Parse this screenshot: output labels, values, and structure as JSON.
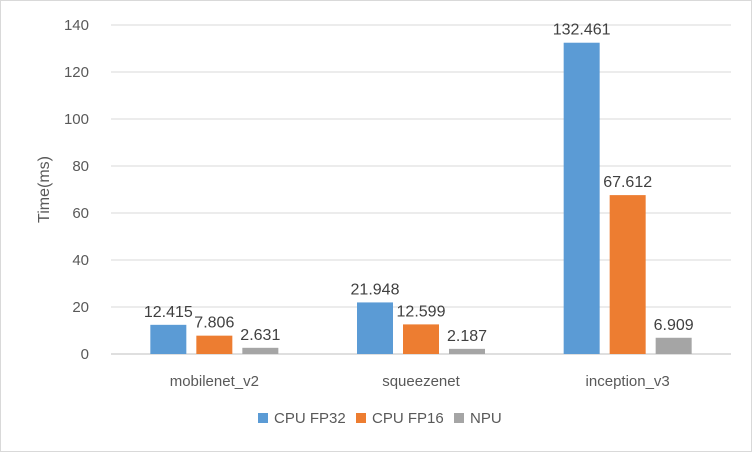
{
  "chart_data": {
    "type": "bar",
    "title": "",
    "xlabel": "",
    "ylabel": "Time(ms)",
    "ylim": [
      0,
      140
    ],
    "yticks": [
      0,
      20,
      40,
      60,
      80,
      100,
      120,
      140
    ],
    "grid": true,
    "legend_position": "bottom",
    "categories": [
      "mobilenet_v2",
      "squeezenet",
      "inception_v3"
    ],
    "series": [
      {
        "name": "CPU FP32",
        "color": "#5b9bd5",
        "values": [
          12.415,
          21.948,
          132.461
        ],
        "labels": [
          "12.415",
          "21.948",
          "132.461"
        ]
      },
      {
        "name": "CPU FP16",
        "color": "#ed7d31",
        "values": [
          7.806,
          12.599,
          67.612
        ],
        "labels": [
          "7.806",
          "12.599",
          "67.612"
        ]
      },
      {
        "name": "NPU",
        "color": "#a5a5a5",
        "values": [
          2.631,
          2.187,
          6.909
        ],
        "labels": [
          "2.631",
          "2.187",
          "6.909"
        ]
      }
    ]
  }
}
